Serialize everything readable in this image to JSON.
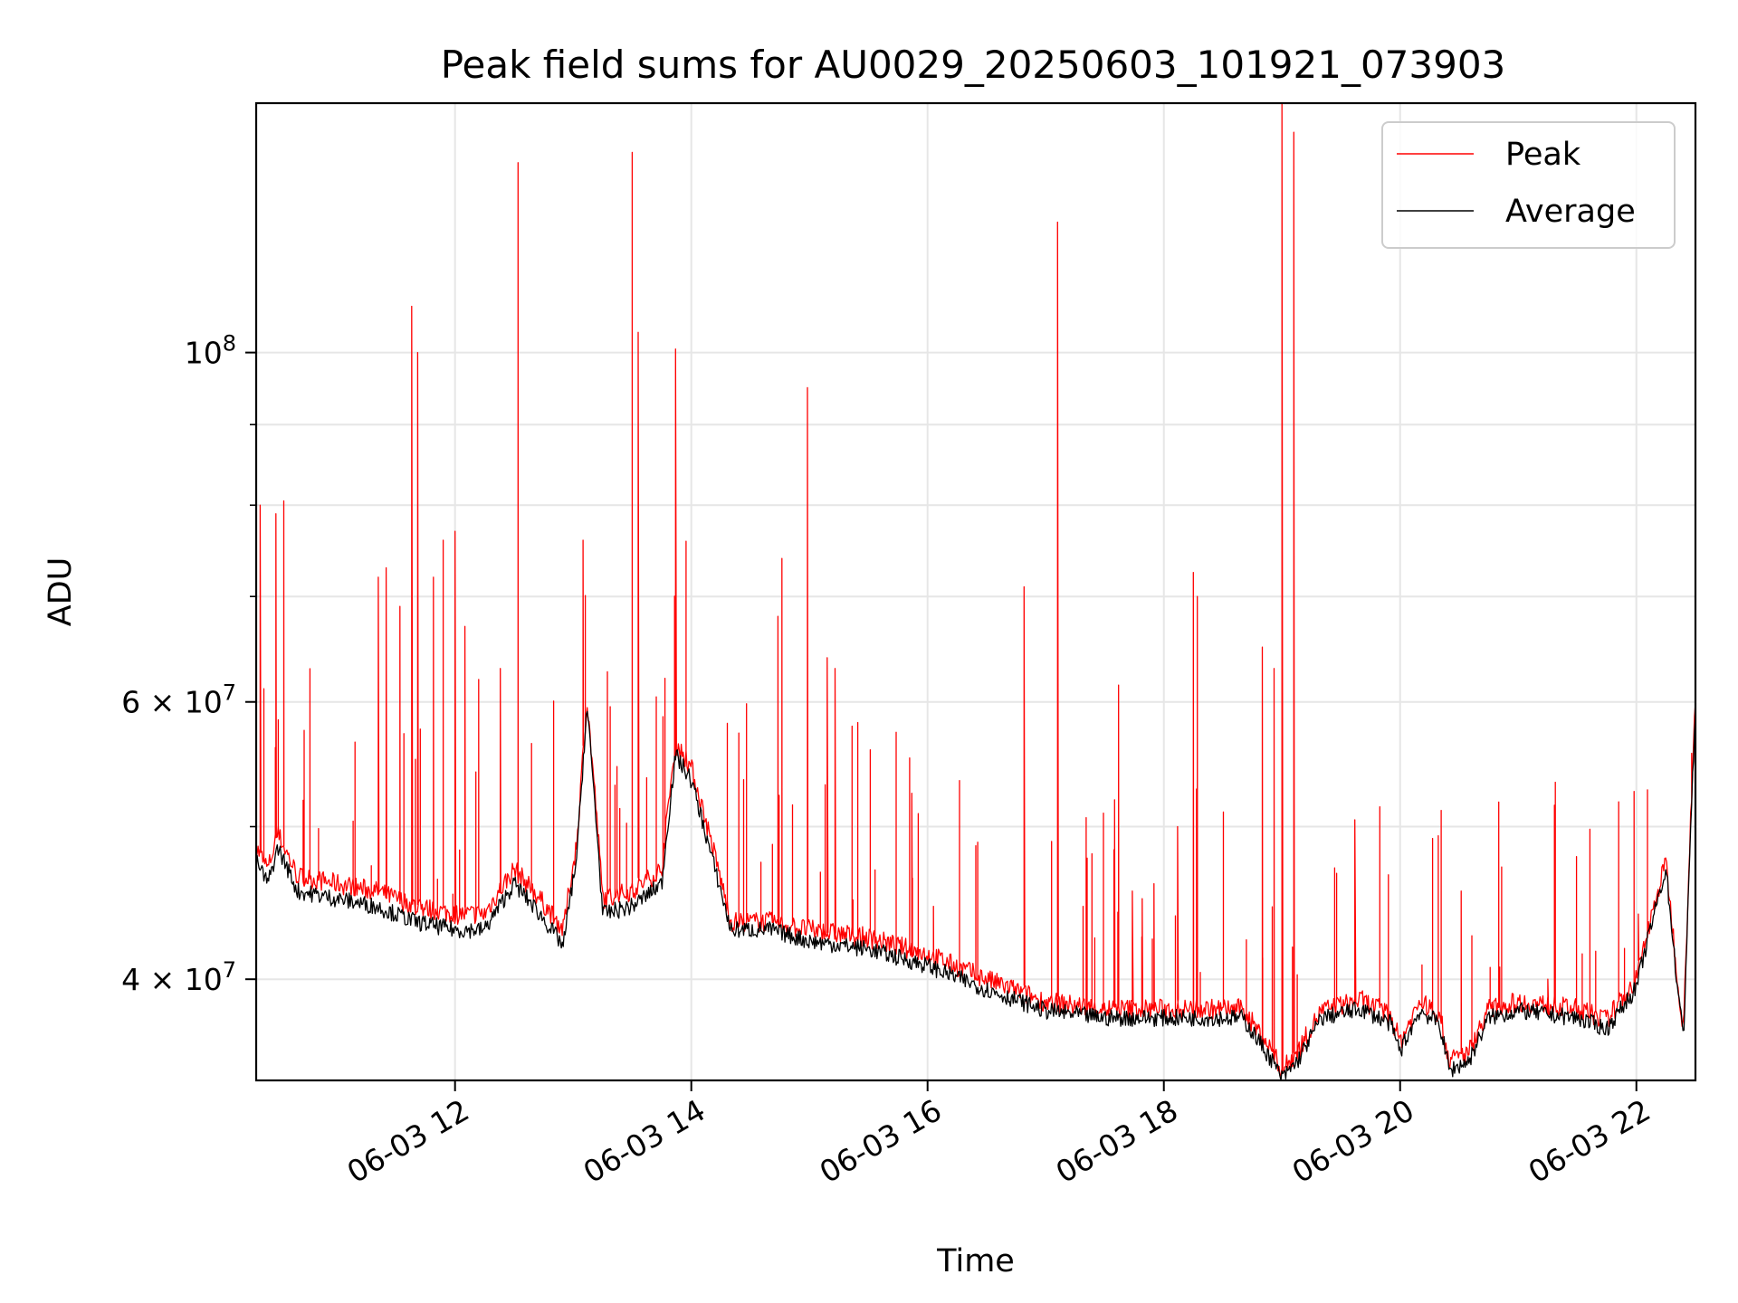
{
  "chart_data": {
    "type": "line",
    "title": "Peak field sums for AU0029_20250603_101921_073903",
    "xlabel": "Time",
    "ylabel": "ADU",
    "y_scale": "log",
    "grid": true,
    "legend_position": "top-right",
    "xlim": [
      "2025-06-03 10:19",
      "2025-06-03 22:30"
    ],
    "ylim": [
      34500000,
      144000000
    ],
    "x_ticks": [
      {
        "value": "2025-06-03 12:00",
        "label": "06-03 12"
      },
      {
        "value": "2025-06-03 14:00",
        "label": "06-03 14"
      },
      {
        "value": "2025-06-03 16:00",
        "label": "06-03 16"
      },
      {
        "value": "2025-06-03 18:00",
        "label": "06-03 18"
      },
      {
        "value": "2025-06-03 20:00",
        "label": "06-03 20"
      },
      {
        "value": "2025-06-03 22:00",
        "label": "06-03 22"
      }
    ],
    "y_ticks": [
      {
        "value": 40000000,
        "base": "4 × 10",
        "exp": "7"
      },
      {
        "value": 60000000,
        "base": "6 × 10",
        "exp": "7"
      },
      {
        "value": 100000000,
        "base": "10",
        "exp": "8"
      }
    ],
    "y_minor_ticks": [
      50000000,
      70000000,
      80000000,
      90000000
    ],
    "series": [
      {
        "name": "Peak",
        "color": "#ff0000",
        "points": [
          [
            "2025-06-03 10:19",
            48500000
          ],
          [
            "2025-06-03 10:25",
            47000000
          ],
          [
            "2025-06-03 10:30",
            49500000
          ],
          [
            "2025-06-03 10:40",
            46500000
          ],
          [
            "2025-06-03 11:00",
            46000000
          ],
          [
            "2025-06-03 11:20",
            45500000
          ],
          [
            "2025-06-03 11:40",
            44500000
          ],
          [
            "2025-06-03 12:00",
            44000000
          ],
          [
            "2025-06-03 12:15",
            44000000
          ],
          [
            "2025-06-03 12:30",
            47000000
          ],
          [
            "2025-06-03 12:40",
            45500000
          ],
          [
            "2025-06-03 12:55",
            43000000
          ],
          [
            "2025-06-03 13:02",
            49000000
          ],
          [
            "2025-06-03 13:07",
            60000000
          ],
          [
            "2025-06-03 13:15",
            45000000
          ],
          [
            "2025-06-03 13:30",
            45500000
          ],
          [
            "2025-06-03 13:45",
            47000000
          ],
          [
            "2025-06-03 13:52",
            56500000
          ],
          [
            "2025-06-03 14:00",
            54500000
          ],
          [
            "2025-06-03 14:10",
            49000000
          ],
          [
            "2025-06-03 14:20",
            43500000
          ],
          [
            "2025-06-03 14:40",
            43500000
          ],
          [
            "2025-06-03 15:00",
            43000000
          ],
          [
            "2025-06-03 15:30",
            42500000
          ],
          [
            "2025-06-03 16:00",
            41500000
          ],
          [
            "2025-06-03 16:30",
            40000000
          ],
          [
            "2025-06-03 17:00",
            38700000
          ],
          [
            "2025-06-03 17:30",
            38300000
          ],
          [
            "2025-06-03 18:00",
            38300000
          ],
          [
            "2025-06-03 18:30",
            38300000
          ],
          [
            "2025-06-03 18:40",
            38300000
          ],
          [
            "2025-06-03 18:55",
            36000000
          ],
          [
            "2025-06-03 19:00",
            35000000
          ],
          [
            "2025-06-03 19:08",
            36000000
          ],
          [
            "2025-06-03 19:20",
            38200000
          ],
          [
            "2025-06-03 19:40",
            38800000
          ],
          [
            "2025-06-03 19:55",
            38000000
          ],
          [
            "2025-06-03 20:00",
            36500000
          ],
          [
            "2025-06-03 20:10",
            38700000
          ],
          [
            "2025-06-03 20:20",
            38000000
          ],
          [
            "2025-06-03 20:25",
            35500000
          ],
          [
            "2025-06-03 20:35",
            36000000
          ],
          [
            "2025-06-03 20:45",
            38300000
          ],
          [
            "2025-06-03 21:00",
            38700000
          ],
          [
            "2025-06-03 21:30",
            38300000
          ],
          [
            "2025-06-03 21:45",
            37700000
          ],
          [
            "2025-06-03 22:00",
            40000000
          ],
          [
            "2025-06-03 22:15",
            47500000
          ],
          [
            "2025-06-03 22:20",
            41000000
          ],
          [
            "2025-06-03 22:24",
            37000000
          ],
          [
            "2025-06-03 22:30",
            60000000
          ]
        ],
        "spikes": [
          [
            "2025-06-03 10:21",
            80000000
          ],
          [
            "2025-06-03 10:29",
            79000000
          ],
          [
            "2025-06-03 10:33",
            80500000
          ],
          [
            "2025-06-03 11:21",
            72000000
          ],
          [
            "2025-06-03 11:25",
            73000000
          ],
          [
            "2025-06-03 11:32",
            69000000
          ],
          [
            "2025-06-03 11:38",
            107000000
          ],
          [
            "2025-06-03 11:41",
            100000000
          ],
          [
            "2025-06-03 11:49",
            72000000
          ],
          [
            "2025-06-03 11:54",
            76000000
          ],
          [
            "2025-06-03 12:00",
            77000000
          ],
          [
            "2025-06-03 12:05",
            67000000
          ],
          [
            "2025-06-03 12:12",
            62000000
          ],
          [
            "2025-06-03 12:23",
            63000000
          ],
          [
            "2025-06-03 12:32",
            132000000
          ],
          [
            "2025-06-03 13:05",
            76000000
          ],
          [
            "2025-06-03 13:30",
            134000000
          ],
          [
            "2025-06-03 13:33",
            103000000
          ],
          [
            "2025-06-03 13:52",
            100500000
          ],
          [
            "2025-06-03 14:44",
            68000000
          ],
          [
            "2025-06-03 14:46",
            74000000
          ],
          [
            "2025-06-03 14:59",
            95000000
          ],
          [
            "2025-06-03 15:09",
            64000000
          ],
          [
            "2025-06-03 15:13",
            63000000
          ],
          [
            "2025-06-03 15:52",
            52500000
          ],
          [
            "2025-06-03 16:03",
            44500000
          ],
          [
            "2025-06-03 16:49",
            71000000
          ],
          [
            "2025-06-03 17:06",
            121000000
          ],
          [
            "2025-06-03 17:19",
            44500000
          ],
          [
            "2025-06-03 17:35",
            52000000
          ],
          [
            "2025-06-03 17:37",
            61500000
          ],
          [
            "2025-06-03 17:44",
            45500000
          ],
          [
            "2025-06-03 17:49",
            45000000
          ],
          [
            "2025-06-03 17:55",
            46000000
          ],
          [
            "2025-06-03 18:07",
            50000000
          ],
          [
            "2025-06-03 18:15",
            72500000
          ],
          [
            "2025-06-03 18:17",
            70000000
          ],
          [
            "2025-06-03 18:50",
            65000000
          ],
          [
            "2025-06-03 18:56",
            63000000
          ],
          [
            "2025-06-03 19:00",
            144000000
          ],
          [
            "2025-06-03 19:06",
            138000000
          ],
          [
            "2025-06-03 19:37",
            50500000
          ],
          [
            "2025-06-03 20:31",
            45500000
          ],
          [
            "2025-06-03 21:15",
            40000000
          ],
          [
            "2025-06-03 22:01",
            44000000
          ]
        ]
      },
      {
        "name": "Average",
        "color": "#000000",
        "points": [
          [
            "2025-06-03 10:19",
            47500000
          ],
          [
            "2025-06-03 10:25",
            46000000
          ],
          [
            "2025-06-03 10:30",
            48500000
          ],
          [
            "2025-06-03 10:40",
            45500000
          ],
          [
            "2025-06-03 11:00",
            45000000
          ],
          [
            "2025-06-03 11:20",
            44500000
          ],
          [
            "2025-06-03 11:40",
            43500000
          ],
          [
            "2025-06-03 12:00",
            43000000
          ],
          [
            "2025-06-03 12:15",
            43000000
          ],
          [
            "2025-06-03 12:30",
            46000000
          ],
          [
            "2025-06-03 12:40",
            44500000
          ],
          [
            "2025-06-03 12:55",
            42000000
          ],
          [
            "2025-06-03 13:02",
            48000000
          ],
          [
            "2025-06-03 13:07",
            59500000
          ],
          [
            "2025-06-03 13:15",
            44000000
          ],
          [
            "2025-06-03 13:30",
            44500000
          ],
          [
            "2025-06-03 13:45",
            46000000
          ],
          [
            "2025-06-03 13:52",
            55500000
          ],
          [
            "2025-06-03 14:00",
            53500000
          ],
          [
            "2025-06-03 14:10",
            48000000
          ],
          [
            "2025-06-03 14:20",
            43000000
          ],
          [
            "2025-06-03 14:40",
            43000000
          ],
          [
            "2025-06-03 15:00",
            42300000
          ],
          [
            "2025-06-03 15:30",
            41800000
          ],
          [
            "2025-06-03 16:00",
            40800000
          ],
          [
            "2025-06-03 16:30",
            39400000
          ],
          [
            "2025-06-03 17:00",
            38200000
          ],
          [
            "2025-06-03 17:30",
            37800000
          ],
          [
            "2025-06-03 18:00",
            37800000
          ],
          [
            "2025-06-03 18:30",
            37800000
          ],
          [
            "2025-06-03 18:40",
            37800000
          ],
          [
            "2025-06-03 18:55",
            35500000
          ],
          [
            "2025-06-03 19:00",
            34600000
          ],
          [
            "2025-06-03 19:08",
            35500000
          ],
          [
            "2025-06-03 19:20",
            37800000
          ],
          [
            "2025-06-03 19:40",
            38300000
          ],
          [
            "2025-06-03 19:55",
            37500000
          ],
          [
            "2025-06-03 20:00",
            36000000
          ],
          [
            "2025-06-03 20:10",
            38200000
          ],
          [
            "2025-06-03 20:20",
            37500000
          ],
          [
            "2025-06-03 20:25",
            35000000
          ],
          [
            "2025-06-03 20:35",
            35500000
          ],
          [
            "2025-06-03 20:45",
            37800000
          ],
          [
            "2025-06-03 21:00",
            38200000
          ],
          [
            "2025-06-03 21:30",
            37800000
          ],
          [
            "2025-06-03 21:45",
            37200000
          ],
          [
            "2025-06-03 22:00",
            39500000
          ],
          [
            "2025-06-03 22:15",
            47000000
          ],
          [
            "2025-06-03 22:20",
            40500000
          ],
          [
            "2025-06-03 22:24",
            36500000
          ],
          [
            "2025-06-03 22:30",
            59000000
          ]
        ]
      }
    ]
  }
}
